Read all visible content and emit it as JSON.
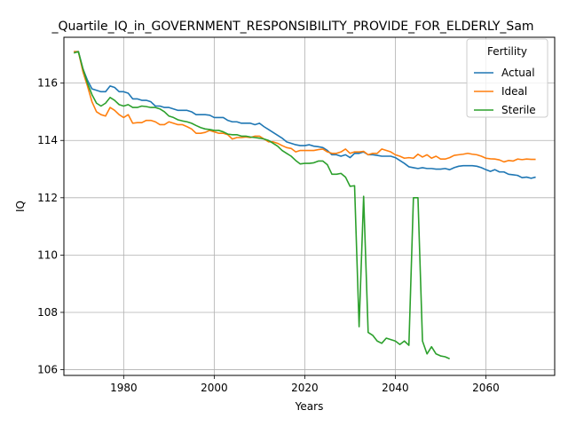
{
  "chart_data": {
    "type": "line",
    "title": "_Quartile_IQ_in_GOVERNMENT_RESPONSIBILITY_PROVIDE_FOR_ELDERLY_Sam",
    "xlabel": "Years",
    "ylabel": "IQ",
    "xlim": [
      1966.8,
      2075.2
    ],
    "ylim": [
      105.8,
      117.6
    ],
    "xticks": [
      1980,
      2000,
      2020,
      2040,
      2060
    ],
    "yticks": [
      106,
      108,
      110,
      112,
      114,
      116
    ],
    "grid": true,
    "legend": {
      "title": "Fertility",
      "position": "top-right",
      "entries": [
        "Actual",
        "Ideal",
        "Sterile"
      ]
    },
    "series": [
      {
        "name": "Actual",
        "color": "#1f77b4",
        "points": [
          [
            1969,
            117.1
          ],
          [
            1970,
            117.1
          ],
          [
            1971,
            116.5
          ],
          [
            1972,
            116.1
          ],
          [
            1973,
            115.8
          ],
          [
            1974,
            115.75
          ],
          [
            1975,
            115.7
          ],
          [
            1976,
            115.7
          ],
          [
            1977,
            115.9
          ],
          [
            1978,
            115.85
          ],
          [
            1979,
            115.7
          ],
          [
            1980,
            115.7
          ],
          [
            1981,
            115.65
          ],
          [
            1982,
            115.45
          ],
          [
            1983,
            115.45
          ],
          [
            1984,
            115.4
          ],
          [
            1985,
            115.4
          ],
          [
            1986,
            115.35
          ],
          [
            1987,
            115.2
          ],
          [
            1988,
            115.2
          ],
          [
            1989,
            115.15
          ],
          [
            1990,
            115.15
          ],
          [
            1991,
            115.1
          ],
          [
            1992,
            115.05
          ],
          [
            1993,
            115.05
          ],
          [
            1994,
            115.05
          ],
          [
            1995,
            115.0
          ],
          [
            1996,
            114.9
          ],
          [
            1997,
            114.9
          ],
          [
            1998,
            114.9
          ],
          [
            1999,
            114.88
          ],
          [
            2000,
            114.8
          ],
          [
            2001,
            114.8
          ],
          [
            2002,
            114.8
          ],
          [
            2003,
            114.7
          ],
          [
            2004,
            114.65
          ],
          [
            2005,
            114.65
          ],
          [
            2006,
            114.6
          ],
          [
            2007,
            114.6
          ],
          [
            2008,
            114.6
          ],
          [
            2009,
            114.55
          ],
          [
            2010,
            114.6
          ],
          [
            2011,
            114.48
          ],
          [
            2012,
            114.38
          ],
          [
            2013,
            114.28
          ],
          [
            2014,
            114.18
          ],
          [
            2015,
            114.08
          ],
          [
            2016,
            113.95
          ],
          [
            2017,
            113.9
          ],
          [
            2018,
            113.85
          ],
          [
            2019,
            113.82
          ],
          [
            2020,
            113.82
          ],
          [
            2021,
            113.85
          ],
          [
            2022,
            113.8
          ],
          [
            2023,
            113.78
          ],
          [
            2024,
            113.75
          ],
          [
            2025,
            113.65
          ],
          [
            2026,
            113.5
          ],
          [
            2027,
            113.5
          ],
          [
            2028,
            113.45
          ],
          [
            2029,
            113.5
          ],
          [
            2030,
            113.4
          ],
          [
            2031,
            113.55
          ],
          [
            2032,
            113.55
          ],
          [
            2033,
            113.6
          ],
          [
            2034,
            113.5
          ],
          [
            2035,
            113.5
          ],
          [
            2036,
            113.48
          ],
          [
            2037,
            113.45
          ],
          [
            2038,
            113.45
          ],
          [
            2039,
            113.45
          ],
          [
            2040,
            113.4
          ],
          [
            2041,
            113.3
          ],
          [
            2042,
            113.2
          ],
          [
            2043,
            113.08
          ],
          [
            2044,
            113.05
          ],
          [
            2045,
            113.02
          ],
          [
            2046,
            113.05
          ],
          [
            2047,
            113.02
          ],
          [
            2048,
            113.02
          ],
          [
            2049,
            113.0
          ],
          [
            2050,
            113.0
          ],
          [
            2051,
            113.02
          ],
          [
            2052,
            112.98
          ],
          [
            2053,
            113.05
          ],
          [
            2054,
            113.1
          ],
          [
            2055,
            113.12
          ],
          [
            2056,
            113.12
          ],
          [
            2057,
            113.12
          ],
          [
            2058,
            113.1
          ],
          [
            2059,
            113.05
          ],
          [
            2060,
            112.98
          ],
          [
            2061,
            112.92
          ],
          [
            2062,
            112.98
          ],
          [
            2063,
            112.9
          ],
          [
            2064,
            112.9
          ],
          [
            2065,
            112.82
          ],
          [
            2066,
            112.8
          ],
          [
            2067,
            112.78
          ],
          [
            2068,
            112.7
          ],
          [
            2069,
            112.72
          ],
          [
            2070,
            112.68
          ],
          [
            2071,
            112.72
          ]
        ]
      },
      {
        "name": "Ideal",
        "color": "#ff7f0e",
        "points": [
          [
            1969,
            117.1
          ],
          [
            1970,
            117.1
          ],
          [
            1971,
            116.4
          ],
          [
            1972,
            115.9
          ],
          [
            1973,
            115.35
          ],
          [
            1974,
            115.0
          ],
          [
            1975,
            114.9
          ],
          [
            1976,
            114.85
          ],
          [
            1977,
            115.15
          ],
          [
            1978,
            115.05
          ],
          [
            1979,
            114.9
          ],
          [
            1980,
            114.8
          ],
          [
            1981,
            114.9
          ],
          [
            1982,
            114.6
          ],
          [
            1983,
            114.62
          ],
          [
            1984,
            114.62
          ],
          [
            1985,
            114.7
          ],
          [
            1986,
            114.7
          ],
          [
            1987,
            114.65
          ],
          [
            1988,
            114.55
          ],
          [
            1989,
            114.55
          ],
          [
            1990,
            114.65
          ],
          [
            1991,
            114.6
          ],
          [
            1992,
            114.55
          ],
          [
            1993,
            114.55
          ],
          [
            1994,
            114.48
          ],
          [
            1995,
            114.4
          ],
          [
            1996,
            114.25
          ],
          [
            1997,
            114.25
          ],
          [
            1998,
            114.28
          ],
          [
            1999,
            114.35
          ],
          [
            2000,
            114.3
          ],
          [
            2001,
            114.25
          ],
          [
            2002,
            114.25
          ],
          [
            2003,
            114.2
          ],
          [
            2004,
            114.05
          ],
          [
            2005,
            114.1
          ],
          [
            2006,
            114.1
          ],
          [
            2007,
            114.12
          ],
          [
            2008,
            114.1
          ],
          [
            2009,
            114.15
          ],
          [
            2010,
            114.15
          ],
          [
            2011,
            114.05
          ],
          [
            2012,
            113.95
          ],
          [
            2013,
            113.95
          ],
          [
            2014,
            113.9
          ],
          [
            2015,
            113.82
          ],
          [
            2016,
            113.75
          ],
          [
            2017,
            113.72
          ],
          [
            2018,
            113.6
          ],
          [
            2019,
            113.65
          ],
          [
            2020,
            113.65
          ],
          [
            2021,
            113.65
          ],
          [
            2022,
            113.65
          ],
          [
            2023,
            113.68
          ],
          [
            2024,
            113.7
          ],
          [
            2025,
            113.6
          ],
          [
            2026,
            113.55
          ],
          [
            2027,
            113.55
          ],
          [
            2028,
            113.6
          ],
          [
            2029,
            113.7
          ],
          [
            2030,
            113.55
          ],
          [
            2031,
            113.6
          ],
          [
            2032,
            113.6
          ],
          [
            2033,
            113.62
          ],
          [
            2034,
            113.5
          ],
          [
            2035,
            113.55
          ],
          [
            2036,
            113.55
          ],
          [
            2037,
            113.7
          ],
          [
            2038,
            113.65
          ],
          [
            2039,
            113.6
          ],
          [
            2040,
            113.5
          ],
          [
            2041,
            113.45
          ],
          [
            2042,
            113.38
          ],
          [
            2043,
            113.4
          ],
          [
            2044,
            113.38
          ],
          [
            2045,
            113.52
          ],
          [
            2046,
            113.42
          ],
          [
            2047,
            113.5
          ],
          [
            2048,
            113.38
          ],
          [
            2049,
            113.45
          ],
          [
            2050,
            113.35
          ],
          [
            2051,
            113.35
          ],
          [
            2052,
            113.4
          ],
          [
            2053,
            113.48
          ],
          [
            2054,
            113.5
          ],
          [
            2055,
            113.52
          ],
          [
            2056,
            113.55
          ],
          [
            2057,
            113.52
          ],
          [
            2058,
            113.5
          ],
          [
            2059,
            113.45
          ],
          [
            2060,
            113.38
          ],
          [
            2061,
            113.36
          ],
          [
            2062,
            113.35
          ],
          [
            2063,
            113.32
          ],
          [
            2064,
            113.25
          ],
          [
            2065,
            113.3
          ],
          [
            2066,
            113.28
          ],
          [
            2067,
            113.35
          ],
          [
            2068,
            113.33
          ],
          [
            2069,
            113.35
          ],
          [
            2070,
            113.34
          ],
          [
            2071,
            113.34
          ]
        ]
      },
      {
        "name": "Sterile",
        "color": "#2ca02c",
        "points": [
          [
            1969,
            117.05
          ],
          [
            1970,
            117.1
          ],
          [
            1971,
            116.5
          ],
          [
            1972,
            116.0
          ],
          [
            1973,
            115.6
          ],
          [
            1974,
            115.3
          ],
          [
            1975,
            115.2
          ],
          [
            1976,
            115.3
          ],
          [
            1977,
            115.5
          ],
          [
            1978,
            115.4
          ],
          [
            1979,
            115.25
          ],
          [
            1980,
            115.2
          ],
          [
            1981,
            115.25
          ],
          [
            1982,
            115.15
          ],
          [
            1983,
            115.15
          ],
          [
            1984,
            115.2
          ],
          [
            1985,
            115.18
          ],
          [
            1986,
            115.15
          ],
          [
            1987,
            115.15
          ],
          [
            1988,
            115.1
          ],
          [
            1989,
            115.0
          ],
          [
            1990,
            114.85
          ],
          [
            1991,
            114.8
          ],
          [
            1992,
            114.72
          ],
          [
            1993,
            114.68
          ],
          [
            1994,
            114.65
          ],
          [
            1995,
            114.6
          ],
          [
            1996,
            114.52
          ],
          [
            1997,
            114.45
          ],
          [
            1998,
            114.4
          ],
          [
            1999,
            114.38
          ],
          [
            2000,
            114.35
          ],
          [
            2001,
            114.35
          ],
          [
            2002,
            114.3
          ],
          [
            2003,
            114.22
          ],
          [
            2004,
            114.2
          ],
          [
            2005,
            114.2
          ],
          [
            2006,
            114.15
          ],
          [
            2007,
            114.15
          ],
          [
            2008,
            114.12
          ],
          [
            2009,
            114.1
          ],
          [
            2010,
            114.08
          ],
          [
            2011,
            114.05
          ],
          [
            2012,
            114.0
          ],
          [
            2013,
            113.9
          ],
          [
            2014,
            113.8
          ],
          [
            2015,
            113.65
          ],
          [
            2016,
            113.55
          ],
          [
            2017,
            113.45
          ],
          [
            2018,
            113.3
          ],
          [
            2019,
            113.18
          ],
          [
            2020,
            113.2
          ],
          [
            2021,
            113.2
          ],
          [
            2022,
            113.22
          ],
          [
            2023,
            113.28
          ],
          [
            2024,
            113.28
          ],
          [
            2025,
            113.15
          ],
          [
            2026,
            112.82
          ],
          [
            2027,
            112.82
          ],
          [
            2028,
            112.85
          ],
          [
            2029,
            112.72
          ],
          [
            2030,
            112.4
          ],
          [
            2031,
            112.42
          ],
          [
            2032,
            107.5
          ],
          [
            2033,
            112.05
          ],
          [
            2034,
            107.3
          ],
          [
            2035,
            107.2
          ],
          [
            2036,
            107.0
          ],
          [
            2037,
            106.92
          ],
          [
            2038,
            107.1
          ],
          [
            2039,
            107.05
          ],
          [
            2040,
            107.0
          ],
          [
            2041,
            106.88
          ],
          [
            2042,
            107.0
          ],
          [
            2043,
            106.85
          ],
          [
            2044,
            112.0
          ],
          [
            2045,
            112.0
          ],
          [
            2046,
            107.0
          ],
          [
            2047,
            106.55
          ],
          [
            2048,
            106.8
          ],
          [
            2049,
            106.55
          ],
          [
            2050,
            106.48
          ],
          [
            2051,
            106.45
          ],
          [
            2052,
            106.38
          ]
        ]
      }
    ]
  }
}
